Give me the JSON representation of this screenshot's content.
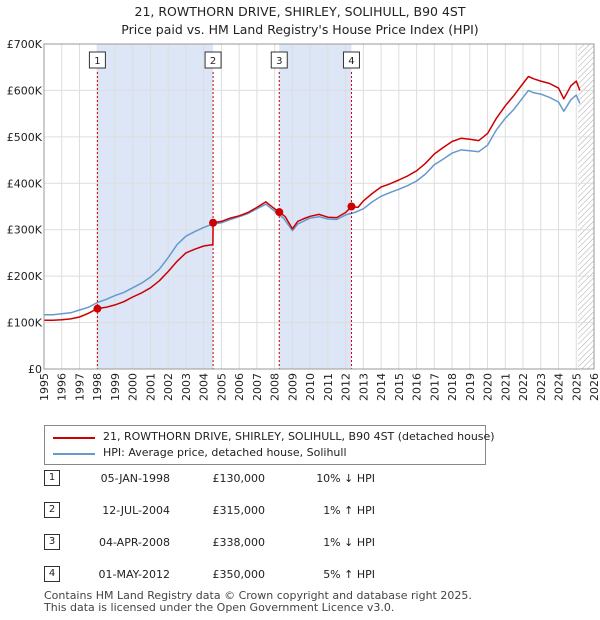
{
  "title": "21, ROWTHORN DRIVE, SHIRLEY, SOLIHULL, B90 4ST",
  "subtitle": "Price paid vs. HM Land Registry's House Price Index (HPI)",
  "legend": {
    "property": "21, ROWTHORN DRIVE, SHIRLEY, SOLIHULL, B90 4ST (detached house)",
    "hpi": "HPI: Average price, detached house, Solihull"
  },
  "colors": {
    "property": "#cc0000",
    "hpi": "#6699cc",
    "shade": "#dde6f7",
    "grid": "#dddddd"
  },
  "transactions": [
    {
      "num": "1",
      "date": "05-JAN-1998",
      "price": "£130,000",
      "hpi": "10% ↓ HPI"
    },
    {
      "num": "2",
      "date": "12-JUL-2004",
      "price": "£315,000",
      "hpi": "1% ↑ HPI"
    },
    {
      "num": "3",
      "date": "04-APR-2008",
      "price": "£338,000",
      "hpi": "1% ↓ HPI"
    },
    {
      "num": "4",
      "date": "01-MAY-2012",
      "price": "£350,000",
      "hpi": "5% ↑ HPI"
    }
  ],
  "footer": {
    "line1": "Contains HM Land Registry data © Crown copyright and database right 2025.",
    "line2": "This data is licensed under the Open Government Licence v3.0."
  },
  "chart_data": {
    "type": "line",
    "xlim": [
      1995,
      2026
    ],
    "ylim": [
      0,
      700000
    ],
    "y_ticks": [
      0,
      100000,
      200000,
      300000,
      400000,
      500000,
      600000,
      700000
    ],
    "y_tick_labels": [
      "£0",
      "£100K",
      "£200K",
      "£300K",
      "£400K",
      "£500K",
      "£600K",
      "£700K"
    ],
    "x_ticks": [
      1995,
      1996,
      1997,
      1998,
      1999,
      2000,
      2001,
      2002,
      2003,
      2004,
      2005,
      2006,
      2007,
      2008,
      2009,
      2010,
      2011,
      2012,
      2013,
      2014,
      2015,
      2016,
      2017,
      2018,
      2019,
      2020,
      2021,
      2022,
      2023,
      2024,
      2025,
      2026
    ],
    "x_tick_labels": [
      "1995",
      "1996",
      "1997",
      "1998",
      "1999",
      "2000",
      "2001",
      "2002",
      "2003",
      "2004",
      "2005",
      "2006",
      "2007",
      "2008",
      "2009",
      "2010",
      "2011",
      "2012",
      "2013",
      "2014",
      "2015",
      "2016",
      "2017",
      "2018",
      "2019",
      "2020",
      "2021",
      "2022",
      "2023",
      "2024",
      "2025",
      "2026"
    ],
    "shaded_ranges": [
      [
        1998.0,
        2004.53
      ],
      [
        2008.26,
        2012.33
      ]
    ],
    "hatched_from": 2025.1,
    "sales": [
      {
        "label": "1",
        "x": 1998.01,
        "y": 130000
      },
      {
        "label": "2",
        "x": 2004.53,
        "y": 315000
      },
      {
        "label": "3",
        "x": 2008.26,
        "y": 338000
      },
      {
        "label": "4",
        "x": 2012.33,
        "y": 350000
      }
    ],
    "series": [
      {
        "name": "HPI: Average price, detached house, Solihull",
        "x": [
          1995,
          1995.5,
          1996,
          1996.5,
          1997,
          1997.5,
          1998,
          1998.5,
          1999,
          1999.5,
          2000,
          2000.5,
          2001,
          2001.5,
          2002,
          2002.5,
          2003,
          2003.5,
          2004,
          2004.5,
          2005,
          2005.5,
          2006,
          2006.5,
          2007,
          2007.5,
          2008,
          2008.5,
          2009,
          2009.3,
          2009.6,
          2010,
          2010.5,
          2011,
          2011.5,
          2012,
          2012.5,
          2013,
          2013.5,
          2014,
          2014.5,
          2015,
          2015.5,
          2016,
          2016.5,
          2017,
          2017.5,
          2018,
          2018.5,
          2019,
          2019.5,
          2020,
          2020.5,
          2021,
          2021.5,
          2022,
          2022.3,
          2022.6,
          2023,
          2023.5,
          2024,
          2024.3,
          2024.7,
          2025,
          2025.2
        ],
        "y": [
          117000,
          117000,
          119000,
          121000,
          127000,
          133000,
          143000,
          150000,
          158000,
          165000,
          175000,
          185000,
          198000,
          215000,
          240000,
          268000,
          286000,
          296000,
          305000,
          312000,
          315000,
          322000,
          328000,
          335000,
          345000,
          355000,
          340000,
          325000,
          298000,
          312000,
          318000,
          325000,
          328000,
          323000,
          322000,
          332000,
          337000,
          345000,
          360000,
          372000,
          380000,
          387000,
          395000,
          405000,
          420000,
          440000,
          452000,
          465000,
          472000,
          470000,
          468000,
          482000,
          515000,
          540000,
          560000,
          585000,
          600000,
          595000,
          592000,
          585000,
          575000,
          555000,
          580000,
          590000,
          572000
        ]
      },
      {
        "name": "21, ROWTHORN DRIVE, SHIRLEY, SOLIHULL, B90 4ST (detached house)",
        "x": [
          1995,
          1995.5,
          1996,
          1996.5,
          1997,
          1997.5,
          1998.01,
          1998.5,
          1999,
          1999.5,
          2000,
          2000.5,
          2001,
          2001.5,
          2002,
          2002.5,
          2003,
          2003.5,
          2004,
          2004.52,
          2004.53,
          2005,
          2005.5,
          2006,
          2006.5,
          2007,
          2007.5,
          2008,
          2008.26,
          2008.6,
          2009,
          2009.3,
          2009.6,
          2010,
          2010.5,
          2011,
          2011.5,
          2012,
          2012.33,
          2012.7,
          2013,
          2013.5,
          2014,
          2014.5,
          2015,
          2015.5,
          2016,
          2016.5,
          2017,
          2017.5,
          2018,
          2018.5,
          2019,
          2019.5,
          2020,
          2020.5,
          2021,
          2021.5,
          2022,
          2022.3,
          2022.6,
          2023,
          2023.5,
          2024,
          2024.3,
          2024.7,
          2025,
          2025.2
        ],
        "y": [
          105000,
          105000,
          106000,
          108000,
          112000,
          120000,
          130000,
          133000,
          138000,
          145000,
          155000,
          164000,
          175000,
          190000,
          210000,
          232000,
          250000,
          258000,
          265000,
          268000,
          315000,
          318000,
          325000,
          330000,
          337000,
          348000,
          360000,
          345000,
          338000,
          328000,
          302000,
          318000,
          323000,
          329000,
          333000,
          327000,
          326000,
          337000,
          350000,
          348000,
          362000,
          378000,
          392000,
          399000,
          407000,
          416000,
          427000,
          443000,
          463000,
          477000,
          490000,
          497000,
          495000,
          492000,
          507000,
          540000,
          567000,
          590000,
          615000,
          630000,
          625000,
          620000,
          615000,
          605000,
          582000,
          610000,
          620000,
          600000
        ]
      }
    ]
  }
}
